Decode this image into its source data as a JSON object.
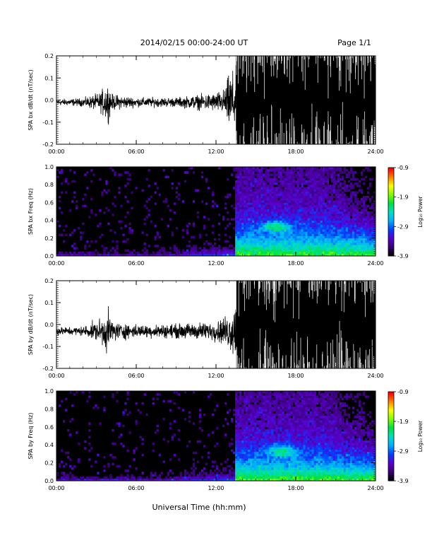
{
  "header": {
    "title": "2014/02/15  00:00-24:00 UT",
    "page": "Page 1/1"
  },
  "footer": {
    "xlabel": "Universal Time (hh:mm)"
  },
  "colors": {
    "trace": "#000000",
    "spectrogram_background": "#000000",
    "colorbar": [
      "#000000",
      "#3b007a",
      "#5a00d0",
      "#0040ff",
      "#00b0ff",
      "#00e0c0",
      "#00e040",
      "#80ff00",
      "#ffff00",
      "#ff8000",
      "#ff0000"
    ]
  },
  "chart_data": [
    {
      "type": "line",
      "id": "bx_dbdt",
      "ylabel": "SPA bx dB/dt (nT/sec)",
      "ylim": [
        -0.2,
        0.2
      ],
      "yticks": [
        "0.2",
        "0.1",
        "0.0",
        "-0.1",
        "-0.2"
      ],
      "yticks_values": [
        0.2,
        0.1,
        0.0,
        -0.1,
        -0.2
      ],
      "xlim": [
        0,
        24
      ],
      "xticks": [
        "00:00",
        "06:00",
        "12:00",
        "18:00",
        "24:00"
      ],
      "xticks_values": [
        0,
        6,
        12,
        18,
        24
      ],
      "envelope_hours": [
        0,
        2,
        3.3,
        3.8,
        4.2,
        6,
        9,
        12,
        12.6,
        13.1,
        13.5,
        24
      ],
      "envelope_amplitude": [
        0.02,
        0.025,
        0.06,
        0.13,
        0.05,
        0.03,
        0.03,
        0.06,
        0.08,
        0.2,
        0.2,
        0.2
      ],
      "offset": -0.01
    },
    {
      "type": "heatmap",
      "id": "bx_freq",
      "ylabel": "SPA bx Freq (Hz)",
      "ylim": [
        0.0,
        1.0
      ],
      "yticks": [
        "1.0",
        "0.8",
        "0.6",
        "0.4",
        "0.2",
        "0.0"
      ],
      "yticks_values": [
        1.0,
        0.8,
        0.6,
        0.4,
        0.2,
        0.0
      ],
      "xlim": [
        0,
        24
      ],
      "xticks": [
        "00:00",
        "06:00",
        "12:00",
        "18:00",
        "24:00"
      ],
      "xticks_values": [
        0,
        6,
        12,
        18,
        24
      ],
      "colorbar": {
        "label": "Log₁₀ Power",
        "range": [
          -3.9,
          -0.9
        ],
        "ticks": [
          "-0.9",
          "-1.9",
          "-2.9",
          "-3.9"
        ],
        "ticks_values": [
          -0.9,
          -1.9,
          -2.9,
          -3.9
        ]
      },
      "onset_hour": 13.5,
      "feature_center": [
        16.5,
        0.33
      ]
    },
    {
      "type": "line",
      "id": "by_dbdt",
      "ylabel": "SPA by dB/dt (nT/sec)",
      "ylim": [
        -0.2,
        0.2
      ],
      "yticks": [
        "0.2",
        "0.1",
        "0.0",
        "-0.1",
        "-0.2"
      ],
      "yticks_values": [
        0.2,
        0.1,
        0.0,
        -0.1,
        -0.2
      ],
      "xlim": [
        0,
        24
      ],
      "xticks": [
        "00:00",
        "06:00",
        "12:00",
        "18:00",
        "24:00"
      ],
      "xticks_values": [
        0,
        6,
        12,
        18,
        24
      ],
      "envelope_hours": [
        0,
        2,
        3.2,
        3.8,
        4.4,
        6,
        9,
        12,
        12.8,
        13.3,
        13.5,
        24
      ],
      "envelope_amplitude": [
        0.025,
        0.03,
        0.07,
        0.13,
        0.06,
        0.04,
        0.045,
        0.06,
        0.1,
        0.15,
        0.2,
        0.2
      ],
      "offset": -0.03
    },
    {
      "type": "heatmap",
      "id": "by_freq",
      "ylabel": "SPA by Freq (Hz)",
      "ylim": [
        0.0,
        1.0
      ],
      "yticks": [
        "1.0",
        "0.8",
        "0.6",
        "0.4",
        "0.2",
        "0.0"
      ],
      "yticks_values": [
        1.0,
        0.8,
        0.6,
        0.4,
        0.2,
        0.0
      ],
      "xlim": [
        0,
        24
      ],
      "xticks": [
        "00:00",
        "06:00",
        "12:00",
        "18:00",
        "24:00"
      ],
      "xticks_values": [
        0,
        6,
        12,
        18,
        24
      ],
      "colorbar": {
        "label": "Log₁₀ Power",
        "range": [
          -3.9,
          -0.9
        ],
        "ticks": [
          "-0.9",
          "-1.9",
          "-2.9",
          "-3.9"
        ],
        "ticks_values": [
          -0.9,
          -1.9,
          -2.9,
          -3.9
        ]
      },
      "onset_hour": 13.5,
      "feature_center": [
        17.0,
        0.33
      ]
    }
  ]
}
